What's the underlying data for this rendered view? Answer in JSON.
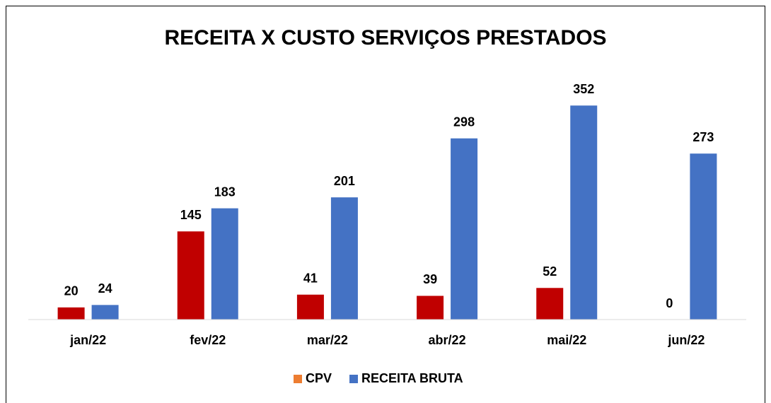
{
  "chart_data": {
    "type": "bar",
    "title": "RECEITA X CUSTO SERVIÇOS PRESTADOS",
    "categories": [
      "jan/22",
      "fev/22",
      "mar/22",
      "abr/22",
      "mai/22",
      "jun/22"
    ],
    "series": [
      {
        "name": "CPV",
        "color": "#c00000",
        "legend_color": "#ed7d31",
        "values": [
          20,
          145,
          41,
          39,
          52,
          0
        ]
      },
      {
        "name": "RECEITA BRUTA",
        "color": "#4472c4",
        "legend_color": "#4472c4",
        "values": [
          24,
          183,
          201,
          298,
          352,
          273
        ]
      }
    ],
    "ylim": [
      0,
      400
    ],
    "legend": "bottom"
  }
}
